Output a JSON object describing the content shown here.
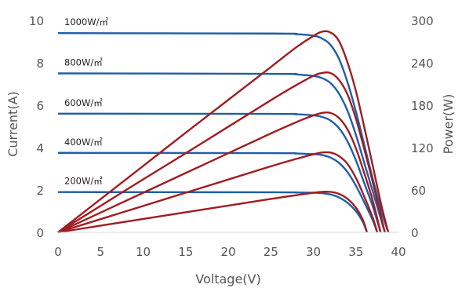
{
  "chart_data": {
    "type": "line",
    "title": "",
    "xlabel": "Voltage(V)",
    "ylabel_left": "Current(A)",
    "ylabel_right": "Power(W)",
    "xlim": [
      0,
      40
    ],
    "ylim_left": [
      0,
      10
    ],
    "ylim_right": [
      0,
      300
    ],
    "x_ticks": [
      "0",
      "5",
      "10",
      "15",
      "20",
      "25",
      "30",
      "35",
      "40"
    ],
    "y_left_ticks": [
      "0",
      "2",
      "4",
      "6",
      "8",
      "10"
    ],
    "y_right_ticks": [
      "0",
      "60",
      "120",
      "180",
      "240",
      "300"
    ],
    "grid": false,
    "legend": "none",
    "colors": {
      "current": "#1f5ea8",
      "power": "#a01d22"
    },
    "annotations": [
      {
        "text": "1000W/㎡",
        "series": "I @ 1000W/㎡"
      },
      {
        "text": "800W/㎡",
        "series": "I @ 800W/㎡"
      },
      {
        "text": "600W/㎡",
        "series": "I @ 600W/㎡"
      },
      {
        "text": "400W/㎡",
        "series": "I @ 400W/㎡"
      },
      {
        "text": "200W/㎡",
        "series": "I @ 200W/㎡"
      }
    ],
    "current_series": [
      {
        "irradiance": "1000W/㎡",
        "axis": "left",
        "points": [
          [
            0,
            9.4
          ],
          [
            25,
            9.38
          ],
          [
            28,
            9.35
          ],
          [
            30,
            9.28
          ],
          [
            31,
            9.15
          ],
          [
            32,
            8.85
          ],
          [
            33,
            8.2
          ],
          [
            34,
            7.1
          ],
          [
            35,
            5.7
          ],
          [
            36,
            4.1
          ],
          [
            37,
            2.5
          ],
          [
            38,
            1.0
          ],
          [
            38.8,
            0
          ]
        ]
      },
      {
        "irradiance": "800W/㎡",
        "axis": "left",
        "points": [
          [
            0,
            7.5
          ],
          [
            25,
            7.48
          ],
          [
            28,
            7.45
          ],
          [
            30,
            7.38
          ],
          [
            31,
            7.28
          ],
          [
            32,
            7.05
          ],
          [
            33,
            6.55
          ],
          [
            34,
            5.75
          ],
          [
            35,
            4.6
          ],
          [
            36,
            3.25
          ],
          [
            37,
            1.9
          ],
          [
            38.4,
            0
          ]
        ]
      },
      {
        "irradiance": "600W/㎡",
        "axis": "left",
        "points": [
          [
            0,
            5.6
          ],
          [
            25,
            5.59
          ],
          [
            28,
            5.57
          ],
          [
            30,
            5.52
          ],
          [
            31,
            5.45
          ],
          [
            32,
            5.28
          ],
          [
            33,
            4.92
          ],
          [
            34,
            4.3
          ],
          [
            35,
            3.4
          ],
          [
            36,
            2.3
          ],
          [
            37,
            1.2
          ],
          [
            37.9,
            0
          ]
        ]
      },
      {
        "irradiance": "400W/㎡",
        "axis": "left",
        "points": [
          [
            0,
            3.75
          ],
          [
            25,
            3.74
          ],
          [
            28,
            3.72
          ],
          [
            30,
            3.69
          ],
          [
            31,
            3.65
          ],
          [
            32,
            3.53
          ],
          [
            33,
            3.28
          ],
          [
            34,
            2.85
          ],
          [
            35,
            2.2
          ],
          [
            36,
            1.4
          ],
          [
            37,
            0.55
          ],
          [
            37.5,
            0
          ]
        ]
      },
      {
        "irradiance": "200W/㎡",
        "axis": "left",
        "points": [
          [
            0,
            1.9
          ],
          [
            25,
            1.89
          ],
          [
            28,
            1.88
          ],
          [
            30,
            1.87
          ],
          [
            31,
            1.85
          ],
          [
            32,
            1.79
          ],
          [
            33,
            1.65
          ],
          [
            34,
            1.4
          ],
          [
            35,
            1.0
          ],
          [
            35.8,
            0.5
          ],
          [
            36.3,
            0
          ]
        ]
      }
    ],
    "power_series": [
      {
        "irradiance": "1000W/㎡",
        "axis": "right",
        "points": [
          [
            0,
            0
          ],
          [
            5,
            47
          ],
          [
            10,
            94
          ],
          [
            15,
            141
          ],
          [
            20,
            187.5
          ],
          [
            25,
            234
          ],
          [
            28,
            262
          ],
          [
            30,
            278
          ],
          [
            31,
            284
          ],
          [
            32,
            283
          ],
          [
            33,
            271
          ],
          [
            34,
            241
          ],
          [
            35,
            200
          ],
          [
            36,
            148
          ],
          [
            37,
            93
          ],
          [
            38,
            38
          ],
          [
            38.8,
            0
          ]
        ]
      },
      {
        "irradiance": "800W/㎡",
        "axis": "right",
        "points": [
          [
            0,
            0
          ],
          [
            5,
            37.5
          ],
          [
            10,
            75
          ],
          [
            15,
            112
          ],
          [
            20,
            149.5
          ],
          [
            25,
            187
          ],
          [
            28,
            208.5
          ],
          [
            30,
            221.5
          ],
          [
            31,
            225.5
          ],
          [
            32,
            225.5
          ],
          [
            33,
            216
          ],
          [
            34,
            195.5
          ],
          [
            35,
            161
          ],
          [
            36,
            117
          ],
          [
            37,
            70
          ],
          [
            38.4,
            0
          ]
        ]
      },
      {
        "irradiance": "600W/㎡",
        "axis": "right",
        "points": [
          [
            0,
            0
          ],
          [
            5,
            28
          ],
          [
            10,
            56
          ],
          [
            15,
            84
          ],
          [
            20,
            112
          ],
          [
            25,
            140
          ],
          [
            28,
            156
          ],
          [
            30,
            165.5
          ],
          [
            31,
            169
          ],
          [
            32,
            169
          ],
          [
            33,
            162
          ],
          [
            34,
            146
          ],
          [
            35,
            119
          ],
          [
            36,
            83
          ],
          [
            37,
            44
          ],
          [
            37.9,
            0
          ]
        ]
      },
      {
        "irradiance": "400W/㎡",
        "axis": "right",
        "points": [
          [
            0,
            0
          ],
          [
            5,
            18.7
          ],
          [
            10,
            37.4
          ],
          [
            15,
            56.1
          ],
          [
            20,
            74.8
          ],
          [
            25,
            93.5
          ],
          [
            28,
            104
          ],
          [
            30,
            110.5
          ],
          [
            31,
            113
          ],
          [
            32,
            113
          ],
          [
            33,
            108
          ],
          [
            34,
            97
          ],
          [
            35,
            77
          ],
          [
            36,
            50
          ],
          [
            37,
            20
          ],
          [
            37.5,
            0
          ]
        ]
      },
      {
        "irradiance": "200W/㎡",
        "axis": "right",
        "points": [
          [
            0,
            0
          ],
          [
            5,
            9.5
          ],
          [
            10,
            19
          ],
          [
            15,
            28.4
          ],
          [
            20,
            37.9
          ],
          [
            25,
            47.3
          ],
          [
            28,
            52.6
          ],
          [
            30,
            56
          ],
          [
            31,
            57.3
          ],
          [
            32,
            57.3
          ],
          [
            33,
            54.5
          ],
          [
            34,
            47.6
          ],
          [
            35,
            35
          ],
          [
            35.8,
            18
          ],
          [
            36.3,
            0
          ]
        ]
      }
    ]
  }
}
